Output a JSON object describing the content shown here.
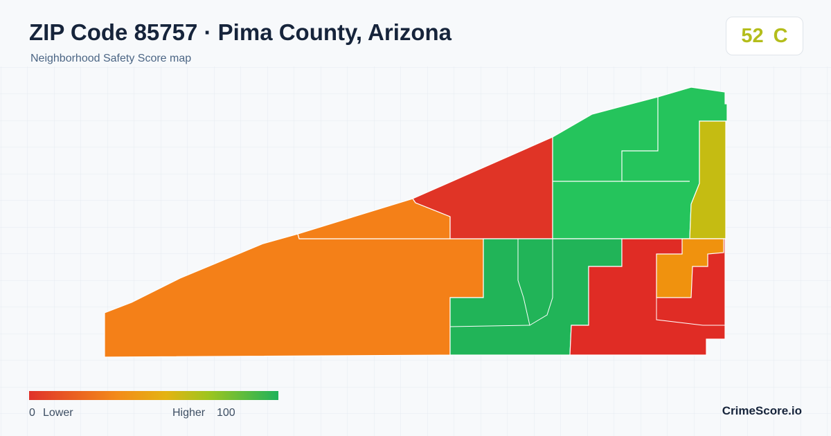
{
  "header": {
    "title": "ZIP Code 85757 · Pima County, Arizona",
    "subtitle": "Neighborhood Safety Score map"
  },
  "score": {
    "value": "52",
    "grade": "C"
  },
  "legend": {
    "min": "0",
    "low_label": "Lower",
    "high_label": "Higher",
    "max": "100"
  },
  "brand": "CrimeScore.io"
}
